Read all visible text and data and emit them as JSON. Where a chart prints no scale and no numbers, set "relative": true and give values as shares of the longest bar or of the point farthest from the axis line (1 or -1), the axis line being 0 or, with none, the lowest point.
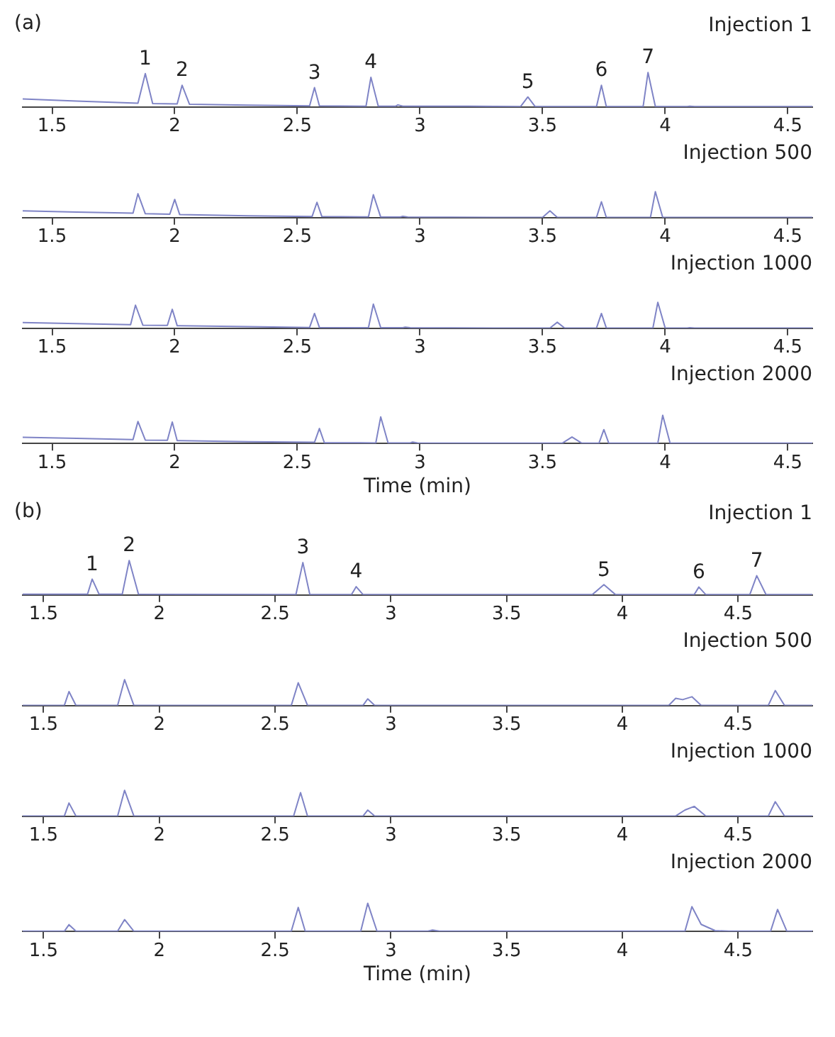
{
  "chart_data": [
    {
      "type": "line",
      "title": "Injection 1",
      "relative": true,
      "color": "#7f84c6",
      "marker": "none",
      "grid": false,
      "legend": false,
      "tick_labels": "x",
      "xlim": [
        1.38,
        4.6
      ],
      "xticks": [
        1.5,
        2,
        2.5,
        3,
        3.5,
        4,
        4.5
      ],
      "annotations": [
        "(a)",
        {
          "text": "1",
          "x": 1.88,
          "y": 0.97
        },
        {
          "text": "2",
          "x": 2.03,
          "y": 0.63
        },
        {
          "text": "3",
          "x": 2.57,
          "y": 0.56
        },
        {
          "text": "4",
          "x": 2.8,
          "y": 0.86
        },
        {
          "text": "5",
          "x": 3.44,
          "y": 0.29
        },
        {
          "text": "6",
          "x": 3.74,
          "y": 0.63
        },
        {
          "text": "7",
          "x": 3.93,
          "y": 1
        }
      ],
      "x": [
        1.38,
        1.6,
        1.85,
        1.88,
        1.91,
        2.01,
        2.03,
        2.06,
        2.3,
        2.55,
        2.57,
        2.59,
        2.78,
        2.8,
        2.83,
        2.9,
        2.91,
        2.93,
        3.2,
        3.41,
        3.44,
        3.47,
        3.72,
        3.74,
        3.76,
        3.91,
        3.93,
        3.96,
        4.09,
        4.1,
        4.12,
        4.6
      ],
      "values": [
        0.23,
        0.17,
        0.11,
        0.97,
        0.1,
        0.09,
        0.63,
        0.08,
        0.05,
        0.03,
        0.56,
        0.03,
        0.02,
        0.86,
        0.02,
        0.02,
        0.06,
        0.02,
        0.02,
        0.01,
        0.29,
        0.01,
        0.01,
        0.63,
        0.01,
        0.01,
        1,
        0.01,
        0.01,
        0.02,
        0.01,
        0.01
      ]
    },
    {
      "type": "line",
      "title": "Injection 500",
      "relative": true,
      "color": "#7f84c6",
      "marker": "none",
      "grid": false,
      "legend": false,
      "tick_labels": "x",
      "xlim": [
        1.38,
        4.6
      ],
      "xticks": [
        1.5,
        2,
        2.5,
        3,
        3.5,
        4,
        4.5
      ],
      "x": [
        1.38,
        1.6,
        1.83,
        1.85,
        1.88,
        1.98,
        2,
        2.02,
        2.3,
        2.56,
        2.58,
        2.6,
        2.79,
        2.81,
        2.84,
        2.92,
        2.93,
        2.95,
        3.3,
        3.5,
        3.53,
        3.56,
        3.72,
        3.74,
        3.76,
        3.94,
        3.96,
        3.99,
        4.6
      ],
      "values": [
        0.26,
        0.21,
        0.17,
        0.92,
        0.15,
        0.13,
        0.7,
        0.12,
        0.07,
        0.04,
        0.59,
        0.04,
        0.03,
        0.88,
        0.02,
        0.02,
        0.05,
        0.02,
        0.01,
        0.01,
        0.26,
        0.01,
        0.01,
        0.61,
        0.01,
        0.01,
        1,
        0.01,
        0.01
      ]
    },
    {
      "type": "line",
      "title": "Injection 1000",
      "relative": true,
      "color": "#7f84c6",
      "marker": "none",
      "grid": false,
      "legend": false,
      "tick_labels": "x",
      "xlim": [
        1.38,
        4.6
      ],
      "xticks": [
        1.5,
        2,
        2.5,
        3,
        3.5,
        4,
        4.5
      ],
      "x": [
        1.38,
        1.6,
        1.82,
        1.84,
        1.87,
        1.97,
        1.99,
        2.01,
        2.3,
        2.55,
        2.57,
        2.59,
        2.79,
        2.81,
        2.84,
        2.93,
        2.94,
        2.96,
        3.3,
        3.53,
        3.56,
        3.59,
        3.72,
        3.74,
        3.76,
        3.95,
        3.97,
        4,
        4.09,
        4.1,
        4.12,
        4.6
      ],
      "values": [
        0.22,
        0.18,
        0.14,
        0.89,
        0.12,
        0.11,
        0.73,
        0.1,
        0.06,
        0.03,
        0.57,
        0.03,
        0.02,
        0.93,
        0.02,
        0.02,
        0.04,
        0.02,
        0.01,
        0.01,
        0.23,
        0.01,
        0.01,
        0.57,
        0.01,
        0.01,
        1,
        0.01,
        0.01,
        0.02,
        0.01,
        0.01
      ]
    },
    {
      "type": "line",
      "title": "Injection 2000",
      "xlabel": "Time (min)",
      "relative": true,
      "color": "#7f84c6",
      "marker": "none",
      "grid": false,
      "legend": false,
      "tick_labels": "x",
      "xlim": [
        1.38,
        4.6
      ],
      "xticks": [
        1.5,
        2,
        2.5,
        3,
        3.5,
        4,
        4.5
      ],
      "x": [
        1.38,
        1.6,
        1.83,
        1.85,
        1.88,
        1.97,
        1.99,
        2.01,
        2.3,
        2.57,
        2.59,
        2.61,
        2.82,
        2.84,
        2.87,
        2.96,
        2.97,
        2.99,
        3.3,
        3.58,
        3.62,
        3.66,
        3.73,
        3.75,
        3.77,
        3.97,
        3.99,
        4.02,
        4.6
      ],
      "values": [
        0.22,
        0.18,
        0.14,
        0.78,
        0.12,
        0.11,
        0.76,
        0.1,
        0.06,
        0.04,
        0.53,
        0.03,
        0.02,
        0.94,
        0.02,
        0.02,
        0.05,
        0.02,
        0.01,
        0.01,
        0.23,
        0.01,
        0.01,
        0.49,
        0.01,
        0.01,
        1,
        0.01,
        0.01
      ]
    },
    {
      "type": "line",
      "title": "Injection 1",
      "relative": true,
      "color": "#7f84c6",
      "marker": "none",
      "grid": false,
      "legend": false,
      "tick_labels": "x",
      "xlim": [
        1.41,
        4.82
      ],
      "xticks": [
        1.5,
        2,
        2.5,
        3,
        3.5,
        4,
        4.5
      ],
      "annotations": [
        "(b)",
        {
          "text": "1",
          "x": 1.71,
          "y": 0.46
        },
        {
          "text": "2",
          "x": 1.87,
          "y": 1
        },
        {
          "text": "3",
          "x": 2.62,
          "y": 0.94
        },
        {
          "text": "4",
          "x": 2.85,
          "y": 0.24
        },
        {
          "text": "5",
          "x": 3.92,
          "y": 0.3
        },
        {
          "text": "6",
          "x": 4.33,
          "y": 0.23
        },
        {
          "text": "7",
          "x": 4.58,
          "y": 0.56
        }
      ],
      "x": [
        1.41,
        1.69,
        1.71,
        1.74,
        1.84,
        1.87,
        1.91,
        2.59,
        2.62,
        2.65,
        2.83,
        2.85,
        2.88,
        3.87,
        3.92,
        3.97,
        4.31,
        4.33,
        4.36,
        4.55,
        4.58,
        4.62,
        4.82
      ],
      "values": [
        0.02,
        0.02,
        0.46,
        0.02,
        0.02,
        1,
        0.02,
        0.01,
        0.94,
        0.01,
        0.01,
        0.24,
        0.01,
        0.01,
        0.3,
        0.01,
        0.01,
        0.23,
        0.01,
        0.01,
        0.56,
        0.01,
        0.01
      ]
    },
    {
      "type": "line",
      "title": "Injection 500",
      "relative": true,
      "color": "#7f84c6",
      "marker": "none",
      "grid": false,
      "legend": false,
      "tick_labels": "x",
      "xlim": [
        1.41,
        4.82
      ],
      "xticks": [
        1.5,
        2,
        2.5,
        3,
        3.5,
        4,
        4.5
      ],
      "x": [
        1.41,
        1.59,
        1.61,
        1.64,
        1.82,
        1.85,
        1.89,
        2.57,
        2.6,
        2.64,
        2.88,
        2.9,
        2.93,
        4.2,
        4.23,
        4.26,
        4.3,
        4.34,
        4.63,
        4.66,
        4.7,
        4.82
      ],
      "values": [
        0.01,
        0.01,
        0.54,
        0.01,
        0.01,
        1,
        0.01,
        0.01,
        0.88,
        0.01,
        0.01,
        0.26,
        0.01,
        0.01,
        0.28,
        0.23,
        0.34,
        0.01,
        0.01,
        0.58,
        0.01,
        0.01
      ]
    },
    {
      "type": "line",
      "title": "Injection 1000",
      "relative": true,
      "color": "#7f84c6",
      "marker": "none",
      "grid": false,
      "legend": false,
      "tick_labels": "x",
      "xlim": [
        1.41,
        4.82
      ],
      "xticks": [
        1.5,
        2,
        2.5,
        3,
        3.5,
        4,
        4.5
      ],
      "x": [
        1.41,
        1.59,
        1.61,
        1.64,
        1.82,
        1.85,
        1.89,
        2.58,
        2.61,
        2.64,
        2.88,
        2.9,
        2.93,
        4.23,
        4.27,
        4.31,
        4.36,
        4.63,
        4.66,
        4.7,
        4.82
      ],
      "values": [
        0.01,
        0.01,
        0.51,
        0.01,
        0.01,
        1,
        0.01,
        0.01,
        0.91,
        0.01,
        0.01,
        0.24,
        0.01,
        0.01,
        0.24,
        0.38,
        0.01,
        0.01,
        0.56,
        0.01,
        0.01
      ]
    },
    {
      "type": "line",
      "title": "Injection 2000",
      "xlabel": "Time (min)",
      "relative": true,
      "color": "#7f84c6",
      "marker": "none",
      "grid": false,
      "legend": false,
      "tick_labels": "x",
      "xlim": [
        1.41,
        4.82
      ],
      "xticks": [
        1.5,
        2,
        2.5,
        3,
        3.5,
        4,
        4.5
      ],
      "x": [
        1.41,
        1.59,
        1.61,
        1.64,
        1.82,
        1.85,
        1.89,
        2.57,
        2.6,
        2.63,
        2.87,
        2.9,
        2.94,
        3.16,
        3.18,
        3.21,
        4.27,
        4.3,
        4.34,
        4.4,
        4.46,
        4.64,
        4.67,
        4.71,
        4.82
      ],
      "values": [
        0.01,
        0.01,
        0.24,
        0.01,
        0.01,
        0.42,
        0.01,
        0.01,
        0.85,
        0.01,
        0.01,
        1,
        0.01,
        0.01,
        0.05,
        0.01,
        0.01,
        0.88,
        0.25,
        0.03,
        0.01,
        0.01,
        0.78,
        0.01,
        0.01
      ]
    }
  ]
}
